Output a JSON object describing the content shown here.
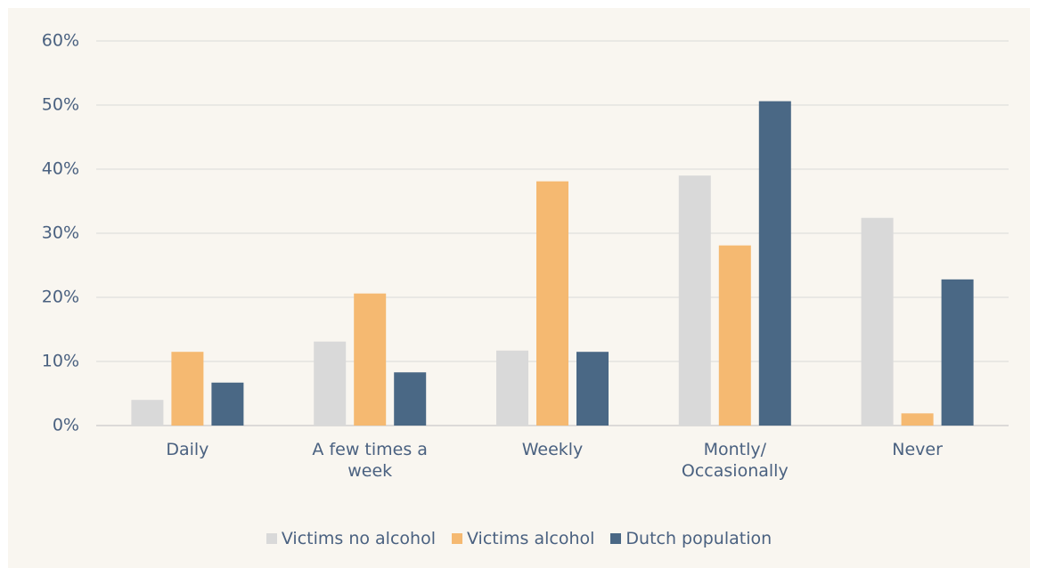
{
  "chart_data": {
    "type": "bar",
    "categories": [
      "Daily",
      "A few times a week",
      "Weekly",
      "Montly/ Occasionally",
      "Never"
    ],
    "series": [
      {
        "name": "Victims no alcohol",
        "color": "#d9d9d9",
        "values": [
          4.0,
          13.1,
          11.7,
          39.0,
          32.4
        ]
      },
      {
        "name": "Victims alcohol",
        "color": "#f5b971",
        "values": [
          11.5,
          20.6,
          38.1,
          28.1,
          1.9
        ]
      },
      {
        "name": "Dutch population",
        "color": "#4a6885",
        "values": [
          6.7,
          8.3,
          11.5,
          50.6,
          22.8
        ]
      }
    ],
    "ylim": [
      0,
      60
    ],
    "yticks": [
      {
        "value": 0,
        "label": "0%"
      },
      {
        "value": 10,
        "label": "10%"
      },
      {
        "value": 20,
        "label": "20%"
      },
      {
        "value": 30,
        "label": "30%"
      },
      {
        "value": 40,
        "label": "40%"
      },
      {
        "value": 50,
        "label": "50%"
      },
      {
        "value": 60,
        "label": "60%"
      }
    ],
    "grid": true,
    "legend": "bottom"
  }
}
